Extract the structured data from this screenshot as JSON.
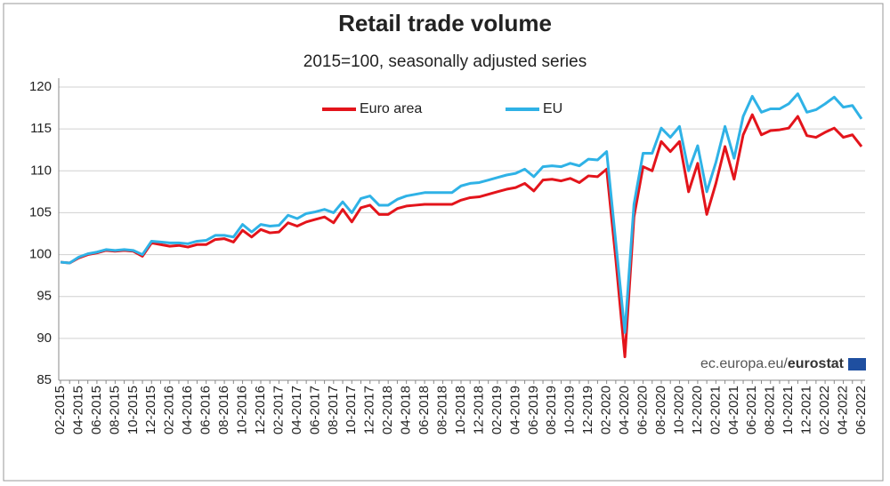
{
  "chart_data": {
    "type": "line",
    "title": "Retail trade volume",
    "subtitle": "2015=100, seasonally adjusted series",
    "source": [
      "ec.europa.eu/",
      "eurostat"
    ],
    "legend": "top",
    "grid": true,
    "categories": [
      "02-2015",
      null,
      "04-2015",
      null,
      "06-2015",
      null,
      "08-2015",
      null,
      "10-2015",
      null,
      "12-2015",
      null,
      "02-2016",
      null,
      "04-2016",
      null,
      "06-2016",
      null,
      "08-2016",
      null,
      "10-2016",
      null,
      "12-2016",
      null,
      "02-2017",
      null,
      "04-2017",
      null,
      "06-2017",
      null,
      "08-2017",
      null,
      "10-2017",
      null,
      "12-2017",
      null,
      "02-2018",
      null,
      "04-2018",
      null,
      "06-2018",
      null,
      "08-2018",
      null,
      "10-2018",
      null,
      "12-2018",
      null,
      "02-2019",
      null,
      "04-2019",
      null,
      "06-2019",
      null,
      "08-2019",
      null,
      "10-2019",
      null,
      "12-2019",
      null,
      "02-2020",
      null,
      "04-2020",
      null,
      "06-2020",
      null,
      "08-2020",
      null,
      "10-2020",
      null,
      "12-2020",
      null,
      "02-2021",
      null,
      "04-2021",
      null,
      "06-2021",
      null,
      "08-2021",
      null,
      "10-2021",
      null,
      "12-2021",
      null,
      "02-2022",
      null,
      "04-2022",
      null,
      "06-2022"
    ],
    "series": [
      {
        "name": "Euro area",
        "color": "#e3141b",
        "values": [
          99.1,
          99.0,
          99.6,
          100.0,
          100.2,
          100.5,
          100.4,
          100.5,
          100.4,
          99.8,
          101.4,
          101.2,
          101.0,
          101.1,
          100.9,
          101.2,
          101.2,
          101.8,
          101.9,
          101.5,
          102.9,
          102.1,
          103.0,
          102.6,
          102.7,
          103.8,
          103.4,
          103.9,
          104.2,
          104.5,
          103.8,
          105.4,
          103.9,
          105.6,
          105.9,
          104.8,
          104.8,
          105.5,
          105.8,
          105.9,
          106.0,
          106.0,
          106.0,
          106.0,
          106.5,
          106.8,
          106.9,
          107.2,
          107.5,
          107.8,
          108.0,
          108.5,
          107.6,
          108.9,
          109.0,
          108.8,
          109.1,
          108.6,
          109.4,
          109.3,
          110.2,
          99.5,
          87.8,
          104.5,
          110.5,
          110.0,
          113.5,
          112.3,
          113.5,
          107.5,
          110.9,
          104.8,
          108.5,
          112.9,
          109.0,
          114.3,
          116.7,
          114.3,
          114.8,
          114.9,
          115.1,
          116.5,
          114.2,
          114.0,
          114.6,
          115.1,
          114.0,
          114.3,
          112.9
        ]
      },
      {
        "name": "EU",
        "color": "#2fb2e6",
        "values": [
          99.1,
          99.0,
          99.7,
          100.1,
          100.3,
          100.6,
          100.5,
          100.6,
          100.5,
          100.0,
          101.6,
          101.5,
          101.4,
          101.4,
          101.3,
          101.6,
          101.7,
          102.3,
          102.3,
          102.1,
          103.6,
          102.7,
          103.6,
          103.4,
          103.5,
          104.7,
          104.3,
          104.9,
          105.1,
          105.4,
          105.0,
          106.3,
          105.0,
          106.7,
          107.0,
          105.9,
          105.9,
          106.6,
          107.0,
          107.2,
          107.4,
          107.4,
          107.4,
          107.4,
          108.2,
          108.5,
          108.6,
          108.9,
          109.2,
          109.5,
          109.7,
          110.2,
          109.3,
          110.5,
          110.6,
          110.5,
          110.9,
          110.6,
          111.4,
          111.3,
          112.3,
          101.5,
          90.7,
          106.0,
          112.1,
          112.1,
          115.1,
          114.0,
          115.3,
          110.0,
          113.0,
          107.5,
          111.0,
          115.3,
          111.5,
          116.5,
          118.9,
          117.0,
          117.4,
          117.4,
          118.0,
          119.2,
          117.0,
          117.3,
          118.0,
          118.8,
          117.6,
          117.8,
          116.2
        ]
      }
    ],
    "ylim": [
      85,
      120
    ],
    "yticks": [
      85,
      90,
      95,
      100,
      105,
      110,
      115,
      120
    ]
  }
}
